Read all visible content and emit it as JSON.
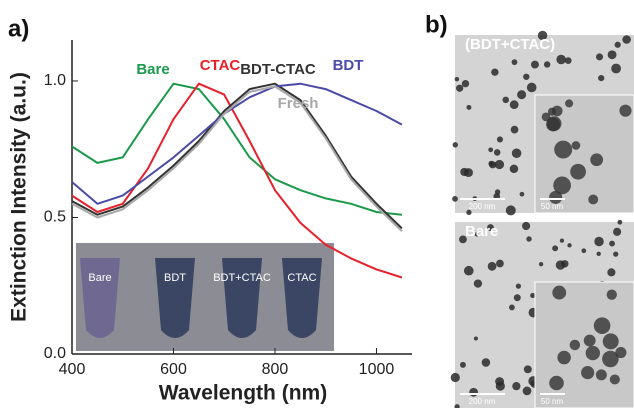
{
  "chart_data": {
    "type": "line",
    "x_label": "Wavelength (nm)",
    "y_label": "Extinction Intensity (a.u.)",
    "x": [
      400,
      450,
      500,
      550,
      600,
      650,
      700,
      750,
      800,
      850,
      900,
      950,
      1000,
      1050
    ],
    "series": [
      {
        "name": "Bare",
        "color": "#1a9a4a",
        "values": [
          0.76,
          0.7,
          0.72,
          0.86,
          0.99,
          0.97,
          0.86,
          0.72,
          0.64,
          0.6,
          0.57,
          0.55,
          0.52,
          0.51
        ]
      },
      {
        "name": "CTAC",
        "color": "#e8202a",
        "values": [
          0.58,
          0.52,
          0.55,
          0.68,
          0.86,
          0.99,
          0.95,
          0.78,
          0.6,
          0.48,
          0.4,
          0.35,
          0.31,
          0.28
        ]
      },
      {
        "name": "BDT-CTAC",
        "color": "#333333",
        "values": [
          0.56,
          0.51,
          0.54,
          0.61,
          0.69,
          0.78,
          0.89,
          0.97,
          0.99,
          0.93,
          0.8,
          0.65,
          0.55,
          0.46
        ]
      },
      {
        "name": "BDT",
        "color": "#4a4aa8",
        "values": [
          0.63,
          0.55,
          0.58,
          0.65,
          0.72,
          0.8,
          0.88,
          0.94,
          0.98,
          0.99,
          0.97,
          0.93,
          0.89,
          0.84
        ]
      },
      {
        "name": "Fresh",
        "color": "#a8a8a8",
        "values": [
          0.55,
          0.5,
          0.53,
          0.6,
          0.68,
          0.77,
          0.88,
          0.96,
          0.98,
          0.92,
          0.79,
          0.64,
          0.54,
          0.45
        ]
      }
    ],
    "xlim": [
      400,
      1070
    ],
    "ylim": [
      0,
      1.15
    ],
    "xticks": [
      400,
      600,
      800,
      1000
    ],
    "yticks": [
      {
        "value": 0,
        "label": "0.0"
      },
      0.5,
      {
        "value": 1,
        "label": "1.0"
      }
    ]
  },
  "panel_labels": [
    "a)",
    "b)"
  ],
  "vial_labels": [
    "Bare",
    "BDT",
    "BDT+CTAC",
    "CTAC"
  ],
  "tem_images": [
    {
      "label": "(BDT+CTAC)",
      "scale_bars": [
        "200 nm",
        "50 nm"
      ]
    },
    {
      "label": "Bare",
      "scale_bars": [
        "200 nm",
        "50 nm"
      ]
    }
  ]
}
